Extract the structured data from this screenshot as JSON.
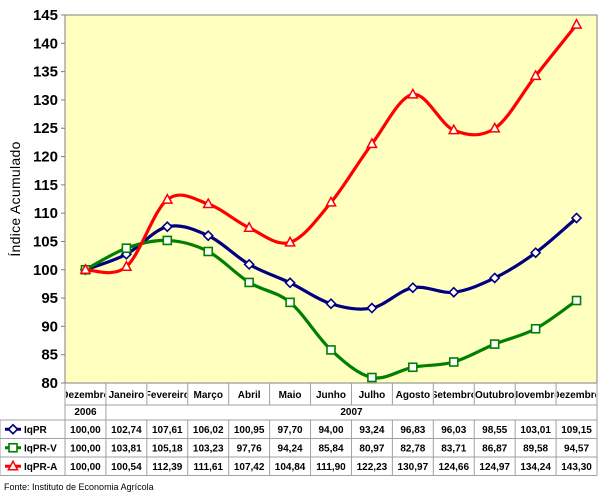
{
  "chart_data": {
    "type": "line",
    "ylabel": "Índice Acumulado",
    "ylim": [
      80,
      145
    ],
    "yticks": [
      "80",
      "85",
      "90",
      "95",
      "100",
      "105",
      "110",
      "115",
      "120",
      "125",
      "130",
      "135",
      "140",
      "145"
    ],
    "categories": [
      "Dezembro",
      "Janeiro",
      "Fevereiro",
      "Março",
      "Abril",
      "Maio",
      "Junho",
      "Julho",
      "Agosto",
      "Setembro",
      "Outubro",
      "Novembro",
      "Dezembro"
    ],
    "year_labels": {
      "first": "2006",
      "rest": "2007"
    },
    "series": [
      {
        "name": "IqPR",
        "color": "#000080",
        "marker": "diamond",
        "values": [
          100.0,
          102.74,
          107.61,
          106.02,
          100.95,
          97.7,
          94.0,
          93.24,
          96.83,
          96.03,
          98.55,
          103.01,
          109.15
        ],
        "labels": [
          "100,00",
          "102,74",
          "107,61",
          "106,02",
          "100,95",
          "97,70",
          "94,00",
          "93,24",
          "96,83",
          "96,03",
          "98,55",
          "103,01",
          "109,15"
        ]
      },
      {
        "name": "IqPR-V",
        "color": "#008000",
        "marker": "square",
        "values": [
          100.0,
          103.81,
          105.18,
          103.23,
          97.76,
          94.24,
          85.84,
          80.97,
          82.78,
          83.71,
          86.87,
          89.58,
          94.57
        ],
        "labels": [
          "100,00",
          "103,81",
          "105,18",
          "103,23",
          "97,76",
          "94,24",
          "85,84",
          "80,97",
          "82,78",
          "83,71",
          "86,87",
          "89,58",
          "94,57"
        ]
      },
      {
        "name": "IqPR-A",
        "color": "#ff0000",
        "marker": "triangle",
        "values": [
          100.0,
          100.54,
          112.39,
          111.61,
          107.42,
          104.84,
          111.9,
          122.23,
          130.97,
          124.66,
          124.97,
          134.24,
          143.3
        ],
        "labels": [
          "100,00",
          "100,54",
          "112,39",
          "111,61",
          "107,42",
          "104,84",
          "111,90",
          "122,23",
          "130,97",
          "124,66",
          "124,97",
          "134,24",
          "143,30"
        ]
      }
    ],
    "source": "Fonte: Instituto de Economia Agrícola",
    "plot_background": "#ffffc0",
    "grid": false,
    "legend": "table-below"
  }
}
